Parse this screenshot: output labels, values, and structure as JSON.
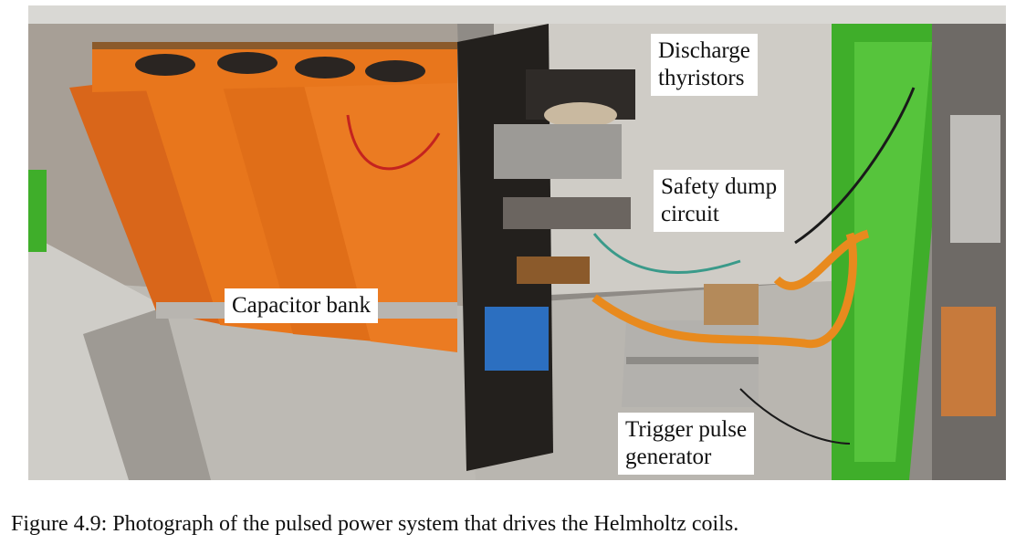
{
  "figure": {
    "labels": {
      "capacitor_bank": "Capacitor bank",
      "discharge_thyristors": [
        "Discharge",
        "thyristors"
      ],
      "safety_dump": [
        "Safety dump",
        "circuit"
      ],
      "trigger_pulse": [
        "Trigger pulse",
        "generator"
      ]
    },
    "caption": "Figure 4.9: Photograph of the pulsed power system that drives the Helmholtz coils."
  },
  "colors": {
    "capacitor_orange": "#e8761c",
    "frame_green": "#3fae2a",
    "panel_black": "#23201d",
    "metal_grey": "#c9c7c3"
  }
}
